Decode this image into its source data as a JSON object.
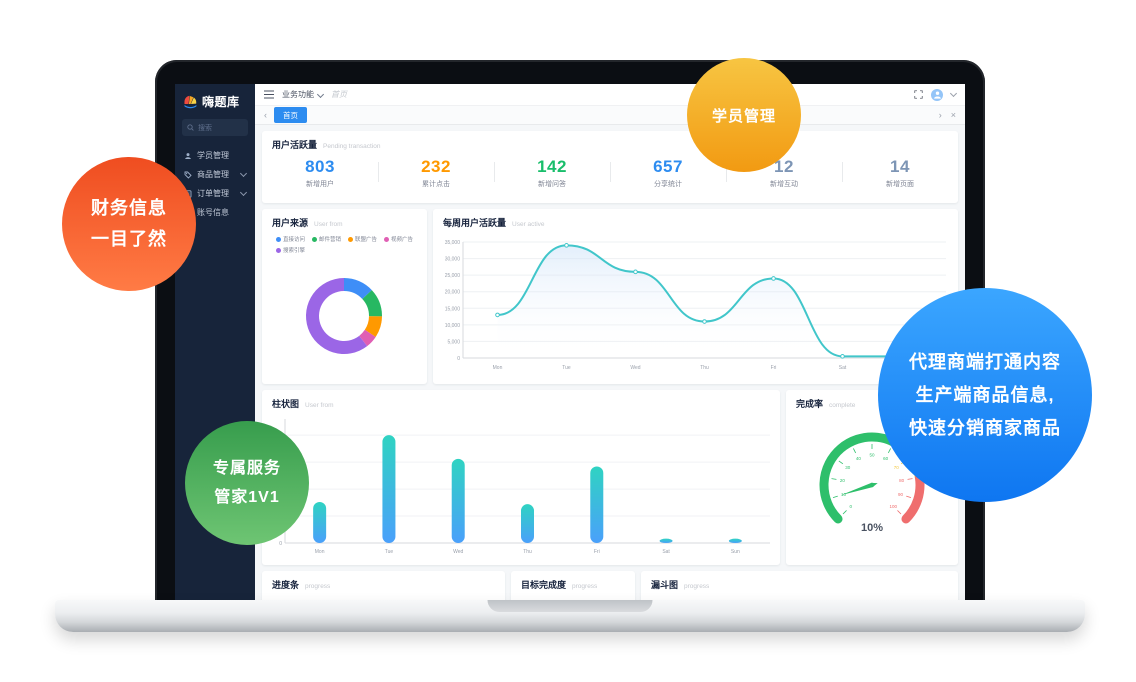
{
  "bubbles": {
    "student": {
      "text": "学员管理"
    },
    "finance": {
      "lines": [
        "财务信息",
        "一目了然"
      ]
    },
    "service": {
      "lines": [
        "专属服务",
        "管家1V1"
      ]
    },
    "agent": {
      "lines": [
        "代理商端打通内容",
        "生产端商品信息,",
        "快速分销商家商品"
      ]
    }
  },
  "icons": {
    "back": "‹",
    "forward": "›",
    "close": "×"
  },
  "app": {
    "sidebar": {
      "logo_text": "嗨题库",
      "search_placeholder": "搜索",
      "menu": [
        {
          "label": "学员管理"
        },
        {
          "label": "商品管理"
        },
        {
          "label": "订单管理"
        },
        {
          "label": "账号信息"
        }
      ]
    },
    "topbar": {
      "menu_label": "业务功能",
      "breadcrumb": "首页"
    },
    "tabbar": {
      "active_tab": "首页"
    },
    "stats": {
      "title": "用户活跃量",
      "subtitle": "Pending transaction",
      "items": [
        {
          "value": "803",
          "label": "新增用户",
          "color": "#2d8cf0"
        },
        {
          "value": "232",
          "label": "累计点击",
          "color": "#ff9900"
        },
        {
          "value": "142",
          "label": "新增问答",
          "color": "#19be6b"
        },
        {
          "value": "657",
          "label": "分享统计",
          "color": "#2d8cf0"
        },
        {
          "value": "12",
          "label": "新增互动",
          "color": "#7d95b5"
        },
        {
          "value": "14",
          "label": "新增页面",
          "color": "#7d95b5"
        }
      ]
    },
    "cards": {
      "donut": {
        "title": "用户来源",
        "subtitle": "User from"
      },
      "weekly": {
        "title": "每周用户活跃量",
        "subtitle": "User active"
      },
      "bars": {
        "title": "柱状图",
        "subtitle": "User from"
      },
      "gauge": {
        "title": "完成率",
        "subtitle": "complete"
      },
      "progress": {
        "title": "进度条",
        "subtitle": "progress"
      },
      "target": {
        "title": "目标完成度",
        "subtitle": "progress"
      },
      "funnel": {
        "title": "漏斗图",
        "subtitle": "progress"
      }
    }
  },
  "chart_data": [
    {
      "id": "user-source-donut",
      "type": "pie",
      "title": "用户来源",
      "legend_position": "top",
      "series": [
        {
          "name": "直接访问",
          "value": 335,
          "color": "#3e8ef7"
        },
        {
          "name": "邮件营销",
          "value": 310,
          "color": "#27b862"
        },
        {
          "name": "联盟广告",
          "value": 234,
          "color": "#ff9900"
        },
        {
          "name": "视频广告",
          "value": 135,
          "color": "#e05fb4"
        },
        {
          "name": "搜索引擎",
          "value": 1548,
          "color": "#9b66e6"
        }
      ]
    },
    {
      "id": "weekly-active-line",
      "type": "area",
      "title": "每周用户活跃量",
      "x": [
        "Mon",
        "Tue",
        "Wed",
        "Thu",
        "Fri",
        "Sat",
        "Sun"
      ],
      "values": [
        13000,
        34000,
        26000,
        11000,
        24000,
        500,
        500
      ],
      "ylim": [
        0,
        35000
      ],
      "ytick_step": 5000,
      "line_color": "#41c6ca",
      "grid": true,
      "legend_position": "none"
    },
    {
      "id": "weekly-bars",
      "type": "bar",
      "title": "柱状图",
      "categories": [
        "Mon",
        "Tue",
        "Wed",
        "Thu",
        "Fri",
        "Sat",
        "Sun"
      ],
      "values": [
        38,
        100,
        78,
        36,
        71,
        4,
        4
      ],
      "ylim": [
        0,
        115
      ],
      "bar_gradient": [
        "#2fd3c2",
        "#4aa0fb"
      ],
      "grid": true
    },
    {
      "id": "completion-gauge",
      "type": "gauge",
      "title": "完成率",
      "value": 10,
      "min": 0,
      "max": 100,
      "label": "10%",
      "tick_step": 10,
      "zones": [
        {
          "to": 70,
          "color": "#2ebf6b"
        },
        {
          "to": 80,
          "color": "#f3c73c"
        },
        {
          "to": 100,
          "color": "#ef6e6e"
        }
      ]
    }
  ]
}
